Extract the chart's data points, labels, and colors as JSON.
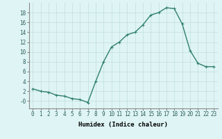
{
  "x": [
    0,
    1,
    2,
    3,
    4,
    5,
    6,
    7,
    8,
    9,
    10,
    11,
    12,
    13,
    14,
    15,
    16,
    17,
    18,
    19,
    20,
    21,
    22,
    23
  ],
  "y": [
    2.5,
    2.0,
    1.8,
    1.2,
    1.0,
    0.5,
    0.3,
    -0.3,
    4.0,
    8.0,
    11.0,
    12.0,
    13.5,
    14.0,
    15.5,
    17.5,
    18.0,
    19.0,
    18.8,
    15.7,
    10.3,
    7.7,
    7.0,
    7.0
  ],
  "line_color": "#2e7f6e",
  "marker": "+",
  "marker_size": 3,
  "background_color": "#dff4f4",
  "grid_color": "#c0dede",
  "xlabel": "Humidex (Indice chaleur)",
  "xlim": [
    -0.5,
    23.5
  ],
  "ylim": [
    -1.5,
    20
  ],
  "yticks": [
    0,
    2,
    4,
    6,
    8,
    10,
    12,
    14,
    16,
    18
  ],
  "ytick_labels": [
    "-0",
    "2",
    "4",
    "6",
    "8",
    "10",
    "12",
    "14",
    "16",
    "18"
  ],
  "xticks": [
    0,
    1,
    2,
    3,
    4,
    5,
    6,
    7,
    8,
    9,
    10,
    11,
    12,
    13,
    14,
    15,
    16,
    17,
    18,
    19,
    20,
    21,
    22,
    23
  ],
  "xlabel_fontsize": 6.5,
  "tick_fontsize": 5.5,
  "line_width": 1.0
}
